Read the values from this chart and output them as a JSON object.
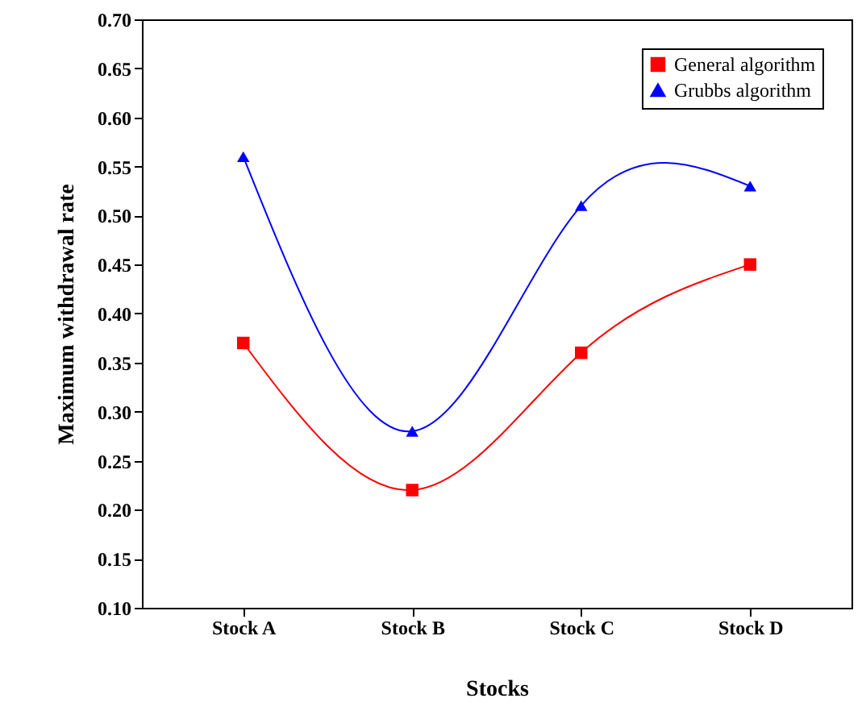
{
  "chart_data": {
    "type": "line",
    "xlabel": "Stocks",
    "ylabel": "Maximum withdrawal rate",
    "categories": [
      "Stock A",
      "Stock B",
      "Stock C",
      "Stock D"
    ],
    "series": [
      {
        "name": "General algorithm",
        "color": "#ff0000",
        "marker": "square",
        "values": [
          0.37,
          0.22,
          0.36,
          0.45
        ]
      },
      {
        "name": "Grubbs algorithm",
        "color": "#0000ff",
        "marker": "triangle",
        "values": [
          0.56,
          0.28,
          0.51,
          0.53
        ]
      }
    ],
    "ylim": [
      0.1,
      0.7
    ],
    "yticks": [
      {
        "value": 0.1,
        "label": "0.10"
      },
      0.15,
      {
        "value": 0.2,
        "label": "0.20"
      },
      0.25,
      {
        "value": 0.3,
        "label": "0.30"
      },
      0.35,
      {
        "value": 0.4,
        "label": "0.40"
      },
      0.45,
      {
        "value": 0.5,
        "label": "0.50"
      },
      0.55,
      {
        "value": 0.6,
        "label": "0.60"
      },
      0.65,
      {
        "value": 0.7,
        "label": "0.70"
      }
    ],
    "grid": false,
    "legend": "top right",
    "line_style": "solid"
  }
}
